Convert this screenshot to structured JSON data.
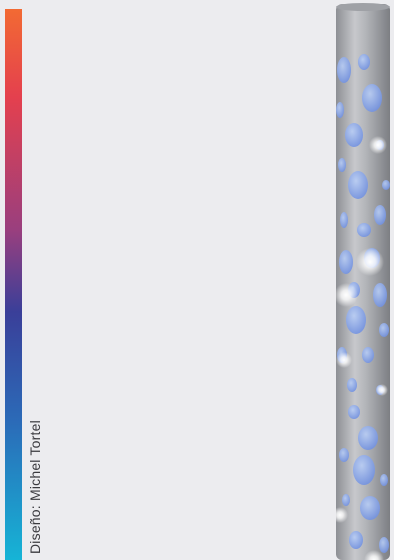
{
  "credit": {
    "text": "Diseño: Michel Tortel"
  },
  "gradient_bar": {
    "colors": [
      "#f26a33",
      "#e4404e",
      "#9a3f7e",
      "#3a3f99",
      "#2b6bb8",
      "#16b4d6"
    ]
  },
  "lamp": {
    "body_color": "#a9abb0",
    "hole_color": "#7f9ce6",
    "highlight_color": "#ffffff"
  }
}
